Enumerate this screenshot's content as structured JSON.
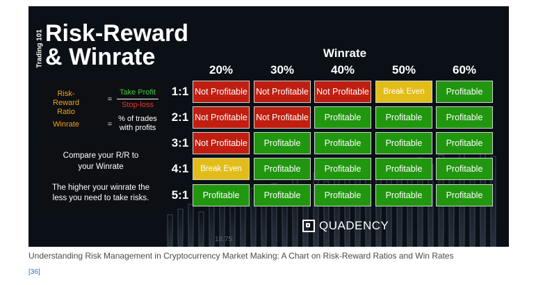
{
  "infographic": {
    "tag": "Trading 101",
    "title_line1": "Risk-Reward",
    "title_line2": "& Winrate",
    "formula": {
      "rr_label": "Risk-Reward Ratio",
      "equals": "=",
      "numerator": "Take Profit",
      "denominator": "Stop-loss",
      "winrate_label": "Winrate",
      "winrate_def": "% of trades with profits"
    },
    "compare": {
      "line1": "Compare your R/R to",
      "line2": "your Winrate",
      "line3": "The higher your winrate the",
      "line4": "less you need to take risks."
    },
    "table": {
      "heading": "Winrate",
      "columns": [
        "20%",
        "30%",
        "40%",
        "50%",
        "60%"
      ],
      "rows": [
        {
          "label": "1:1",
          "cells": [
            "Not Profitable",
            "Not Profitable",
            "Not Profitable",
            "Break Even",
            "Profitable"
          ]
        },
        {
          "label": "2:1",
          "cells": [
            "Not Profitable",
            "Not Profitable",
            "Profitable",
            "Profitable",
            "Profitable"
          ]
        },
        {
          "label": "3:1",
          "cells": [
            "Not Profitable",
            "Profitable",
            "Profitable",
            "Profitable",
            "Profitable"
          ]
        },
        {
          "label": "4:1",
          "cells": [
            "Break Even",
            "Profitable",
            "Profitable",
            "Profitable",
            "Profitable"
          ]
        },
        {
          "label": "5:1",
          "cells": [
            "Profitable",
            "Profitable",
            "Profitable",
            "Profitable",
            "Profitable"
          ]
        }
      ]
    },
    "colors": {
      "not_profitable": "#c01e10",
      "break_even": "#e2bd19",
      "profitable": "#21960f",
      "accent": "#f2a21a"
    },
    "logo": {
      "icon": "quadency-logo-icon",
      "text": "QUADENCY"
    },
    "background_price_label": "18.75"
  },
  "caption": "Understanding Risk Management in Cryptocurrency Market Making: A Chart on Risk-Reward Ratios and Win Rates",
  "reference": "[36]"
}
